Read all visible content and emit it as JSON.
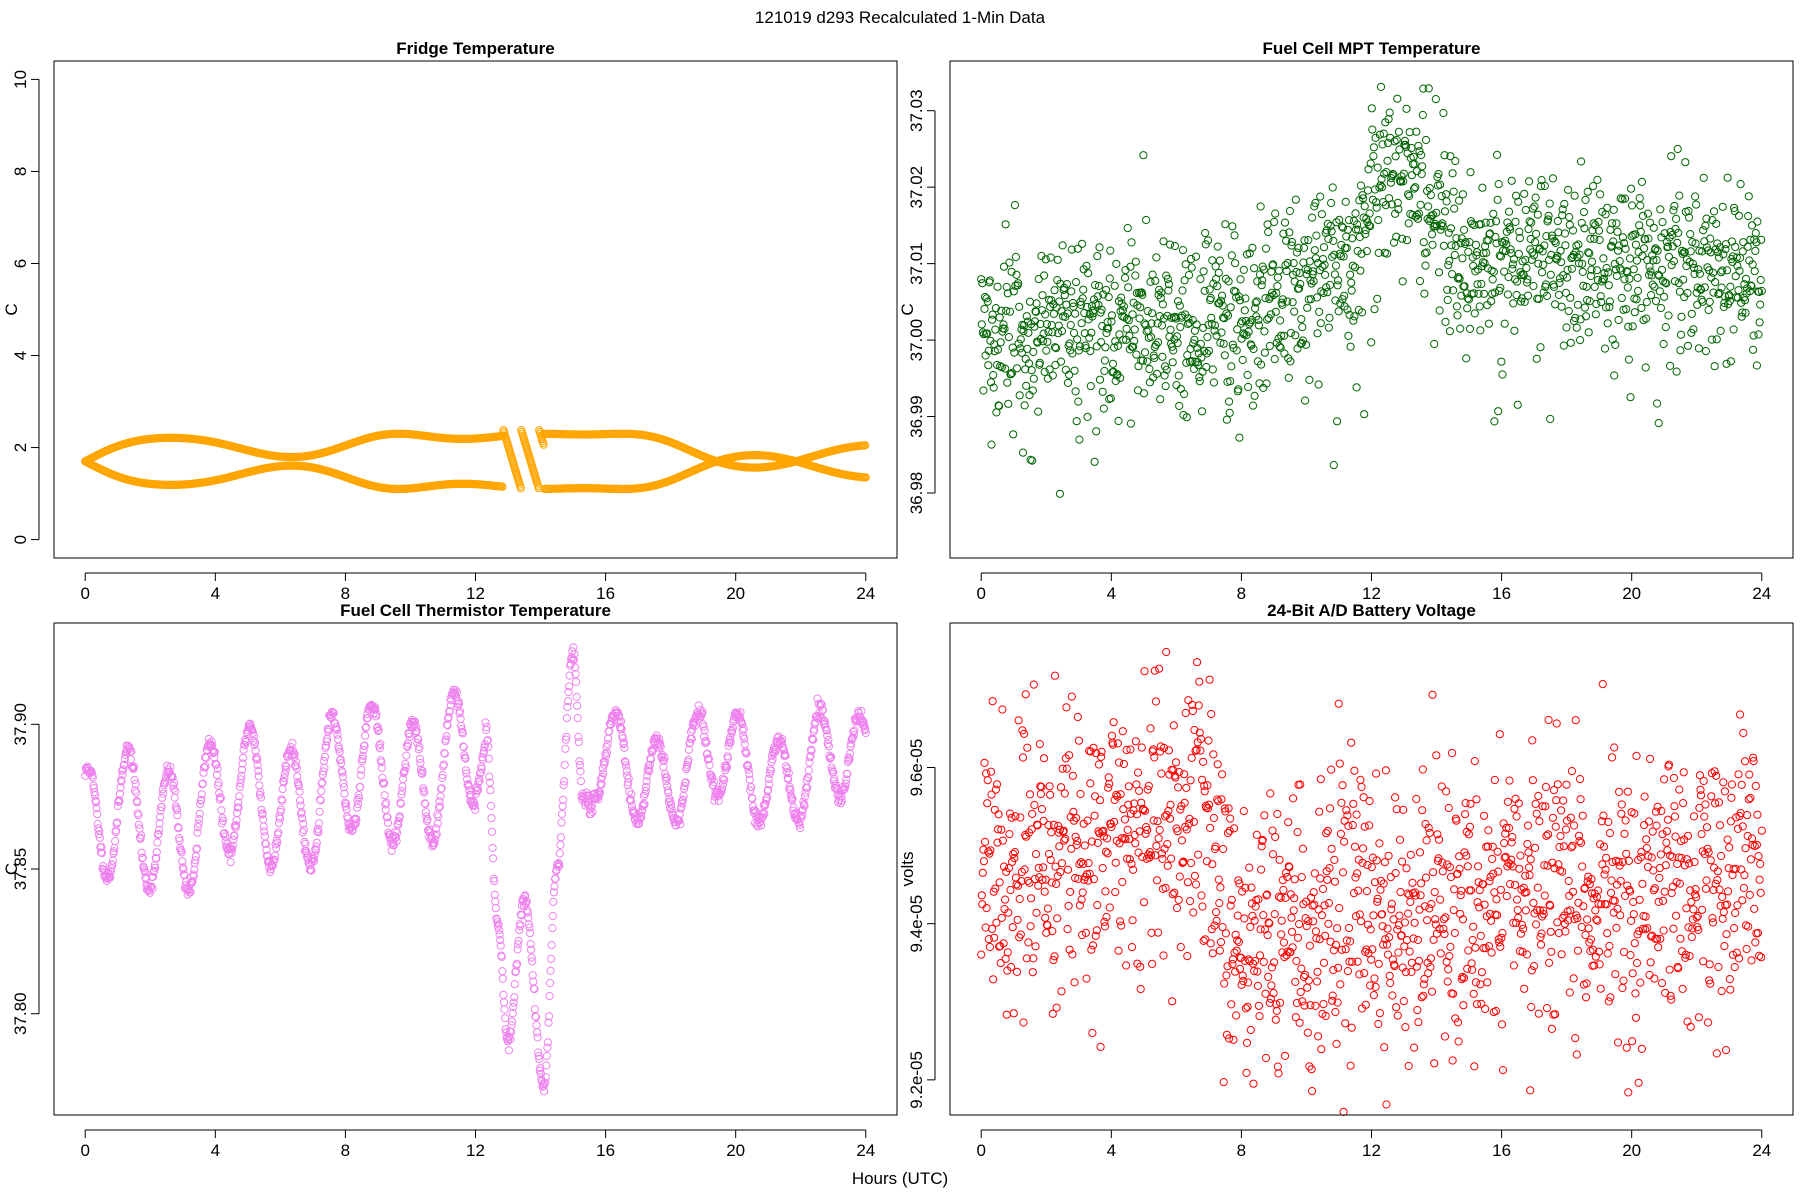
{
  "figure": {
    "title": "121019   d293   Recalculated 1-Min Data",
    "xlabel": "Hours (UTC)"
  },
  "chart_data": [
    {
      "type": "scatter",
      "title": "Fridge Temperature",
      "xlabel": "Hours (UTC)",
      "ylabel": "C",
      "xlim": [
        -0.96,
        24.96
      ],
      "ylim": [
        -0.4,
        10.4
      ],
      "xticks": [
        0,
        4,
        8,
        12,
        16,
        20,
        24
      ],
      "yticks": [
        0,
        2,
        4,
        6,
        8,
        10
      ],
      "ytick_labels": [
        "0",
        "2",
        "4",
        "6",
        "8",
        "10"
      ],
      "color": "#ffa500",
      "series": [
        {
          "name": "Fridge Temperature",
          "model": "fridge",
          "n_points": 1440,
          "x_range": [
            0,
            24
          ]
        }
      ]
    },
    {
      "type": "scatter",
      "title": "Fuel Cell MPT Temperature",
      "xlabel": "Hours (UTC)",
      "ylabel": "C",
      "xlim": [
        -0.96,
        24.96
      ],
      "ylim": [
        36.9715,
        37.0365
      ],
      "xticks": [
        0,
        4,
        8,
        12,
        16,
        20,
        24
      ],
      "yticks": [
        36.98,
        36.99,
        37.0,
        37.01,
        37.02,
        37.03
      ],
      "ytick_labels": [
        "36.98",
        "36.99",
        "37.00",
        "37.01",
        "37.02",
        "37.03"
      ],
      "color": "#006400",
      "series": [
        {
          "name": "Fuel Cell MPT Temperature",
          "model": "mpt",
          "n_points": 1440,
          "x_range": [
            0,
            24
          ]
        }
      ]
    },
    {
      "type": "scatter",
      "title": "Fuel Cell Thermistor Temperature",
      "xlabel": "Hours (UTC)",
      "ylabel": "C",
      "xlim": [
        -0.96,
        24.96
      ],
      "ylim": [
        37.765,
        37.935
      ],
      "xticks": [
        0,
        4,
        8,
        12,
        16,
        20,
        24
      ],
      "yticks": [
        37.8,
        37.85,
        37.9
      ],
      "ytick_labels": [
        "37.80",
        "37.85",
        "37.90"
      ],
      "color": "#ee82ee",
      "series": [
        {
          "name": "Fuel Cell Thermistor Temperature",
          "model": "thermistor",
          "n_points": 1440,
          "x_range": [
            0,
            24
          ]
        }
      ]
    },
    {
      "type": "scatter",
      "title": "24-Bit A/D Battery Voltage",
      "xlabel": "Hours (UTC)",
      "ylabel": "volts",
      "xlim": [
        -0.96,
        24.96
      ],
      "ylim": [
        9.155e-05,
        9.785e-05
      ],
      "xticks": [
        0,
        4,
        8,
        12,
        16,
        20,
        24
      ],
      "yticks": [
        9.2e-05,
        9.4e-05,
        9.6e-05
      ],
      "ytick_labels": [
        "9.2e-05",
        "9.4e-05",
        "9.6e-05"
      ],
      "color": "#ff0000",
      "series": [
        {
          "name": "24-Bit A/D Battery Voltage",
          "model": "battery",
          "n_points": 1440,
          "x_range": [
            0,
            24
          ]
        }
      ]
    }
  ]
}
